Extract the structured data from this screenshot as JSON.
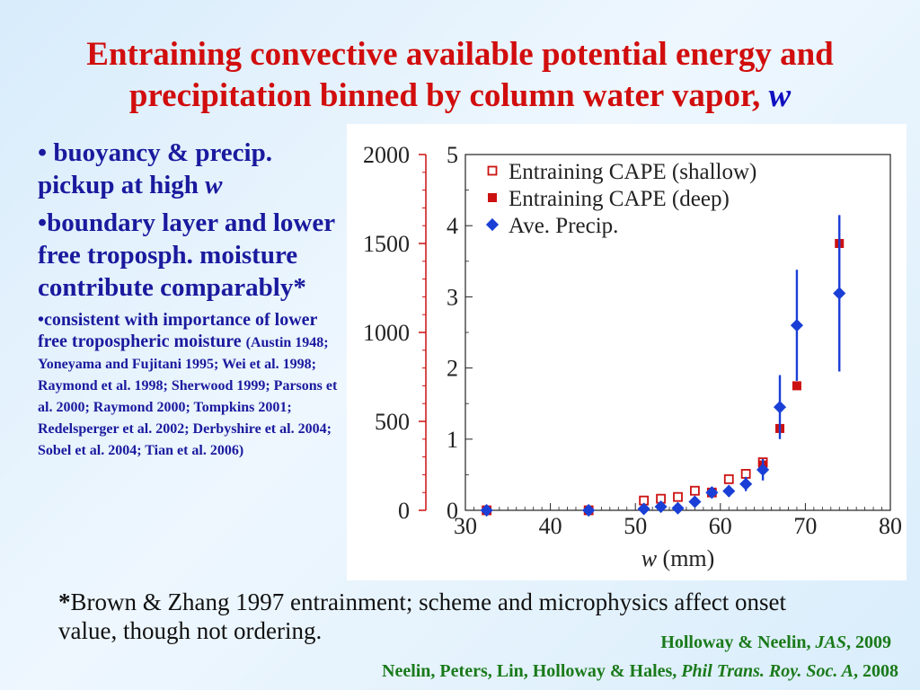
{
  "title": {
    "line1": "Entraining convective available potential energy and",
    "line2": "precipitation binned by column water vapor, ",
    "var": "w"
  },
  "bullets": {
    "b1_text": "buoyancy & precip. pickup at high ",
    "b1_var": "w",
    "b2_text": "boundary layer and lower free troposph. moisture contribute comparably*",
    "b3_text": "consistent with importance of lower free tropospheric moisture ",
    "b3_refs": "(Austin 1948; Yoneyama and Fujitani 1995; Wei et al. 1998; Raymond et al. 1998; Sherwood 1999; Parsons et al. 2000; Raymond 2000; Tompkins 2001; Redelsperger et al. 2002; Derbyshire et al. 2004; Sobel et al. 2004; Tian et al. 2006)"
  },
  "footnote": {
    "star": "*",
    "text": "Brown & Zhang 1997 entrainment; scheme and microphysics affect onset value, though not ordering."
  },
  "citations": {
    "c1_authors": "Holloway & Neelin, ",
    "c1_journal": "JAS",
    "c1_year": ", 2009",
    "c2_authors": "Neelin, Peters, Lin, Holloway & Hales, ",
    "c2_journal": "Phil Trans. Roy. Soc. A",
    "c2_year": ", 2008"
  },
  "chart_data": {
    "type": "scatter",
    "xlabel_var": "w",
    "xlabel_unit": " (mm)",
    "x_range": [
      30,
      80
    ],
    "x_ticks": [
      30,
      40,
      50,
      60,
      70,
      80
    ],
    "y_right_range": [
      0,
      5
    ],
    "y_right_ticks": [
      0,
      1,
      2,
      3,
      4,
      5
    ],
    "y_left_range": [
      0,
      2000
    ],
    "y_left_ticks": [
      0,
      500,
      1000,
      1500,
      2000
    ],
    "colors": {
      "cape": "#cc1111",
      "precip": "#1a3fd6"
    },
    "series": [
      {
        "name": "Entraining CAPE (shallow)",
        "axis": "left",
        "marker": "open-square",
        "x": [
          32.5,
          44.5,
          51,
          53,
          55,
          57,
          59,
          61,
          63,
          65
        ],
        "y": [
          0,
          0,
          55,
          65,
          75,
          110,
          100,
          175,
          205,
          270
        ]
      },
      {
        "name": "Entraining CAPE (deep)",
        "axis": "left",
        "marker": "filled-square",
        "x": [
          32.5,
          44.5,
          59,
          65,
          67,
          69,
          74
        ],
        "y": [
          0,
          0,
          100,
          255,
          460,
          700,
          1500
        ]
      },
      {
        "name": "Ave. Precip.",
        "axis": "right",
        "marker": "diamond",
        "x": [
          32.5,
          44.5,
          51,
          53,
          55,
          57,
          59,
          61,
          63,
          65,
          67,
          69,
          74
        ],
        "y": [
          0.0,
          0.0,
          0.02,
          0.05,
          0.03,
          0.12,
          0.25,
          0.27,
          0.37,
          0.57,
          1.45,
          2.6,
          3.05
        ],
        "err": [
          0,
          0,
          0,
          0,
          0,
          0,
          0.08,
          0.08,
          0.1,
          0.15,
          0.45,
          0.78,
          1.1
        ]
      }
    ]
  }
}
